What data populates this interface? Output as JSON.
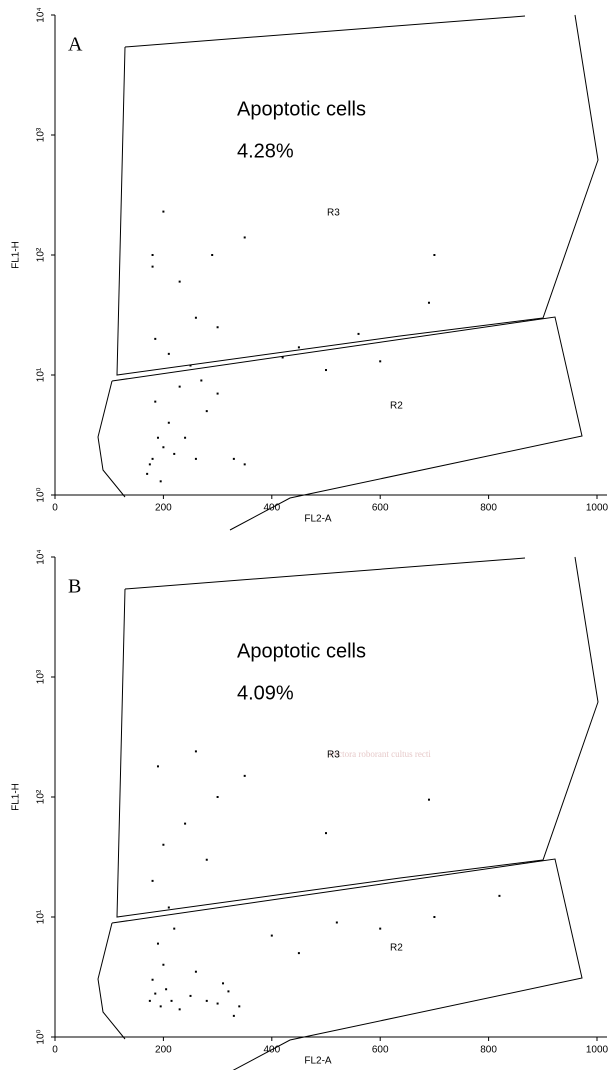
{
  "chart_data": [
    {
      "type": "scatter",
      "panel_label": "A",
      "xlabel": "FL2-A",
      "ylabel": "FL1-H",
      "yscale": "log",
      "xlim": [
        0,
        1000
      ],
      "xticks": [
        0,
        200,
        400,
        600,
        800,
        1000
      ],
      "ylim": [
        1,
        10000
      ],
      "yticks": [
        {
          "value": 1,
          "label": "10⁰"
        },
        {
          "value": 10,
          "label": "10¹"
        },
        {
          "value": 100,
          "label": "10²"
        },
        {
          "value": 1000,
          "label": "10³"
        },
        {
          "value": 10000,
          "label": "10⁴"
        }
      ],
      "annotations": [
        "Apoptotic cells",
        "4.28%"
      ],
      "region_labels": [
        "R3",
        "R2"
      ],
      "color": "#000000",
      "x": [
        180,
        190,
        200,
        210,
        175,
        185,
        220,
        240,
        260,
        280,
        300,
        330,
        350,
        170,
        195,
        230,
        270,
        250,
        210,
        185,
        300,
        420,
        500,
        600,
        690,
        180,
        200,
        230,
        260,
        180,
        290,
        350,
        450,
        560,
        700
      ],
      "values": [
        2,
        3,
        2.5,
        4,
        1.8,
        6,
        2.2,
        3,
        2,
        5,
        7,
        2,
        1.8,
        1.5,
        1.3,
        8,
        9,
        12,
        15,
        20,
        25,
        14,
        11,
        13,
        40,
        80,
        230,
        60,
        30,
        100,
        100,
        140,
        17,
        22,
        100
      ]
    },
    {
      "type": "scatter",
      "panel_label": "B",
      "xlabel": "FL2-A",
      "ylabel": "FL1-H",
      "yscale": "log",
      "xlim": [
        0,
        1000
      ],
      "xticks": [
        0,
        200,
        400,
        600,
        800,
        1000
      ],
      "ylim": [
        1,
        10000
      ],
      "yticks": [
        {
          "value": 1,
          "label": "10⁰"
        },
        {
          "value": 10,
          "label": "10¹"
        },
        {
          "value": 100,
          "label": "10²"
        },
        {
          "value": 1000,
          "label": "10³"
        },
        {
          "value": 10000,
          "label": "10⁴"
        }
      ],
      "annotations": [
        "Apoptotic cells",
        "4.09%"
      ],
      "region_labels": [
        "R3",
        "R2"
      ],
      "color": "#000000",
      "x": [
        175,
        185,
        195,
        205,
        215,
        230,
        250,
        280,
        300,
        320,
        340,
        180,
        200,
        260,
        310,
        330,
        190,
        220,
        400,
        450,
        520,
        600,
        700,
        820,
        180,
        200,
        240,
        280,
        300,
        350,
        190,
        260,
        500,
        690,
        210
      ],
      "values": [
        2,
        2.3,
        1.8,
        2.5,
        2,
        1.7,
        2.2,
        2,
        1.9,
        2.4,
        1.8,
        3,
        4,
        3.5,
        2.8,
        1.5,
        6,
        8,
        7,
        5,
        9,
        8,
        10,
        15,
        20,
        40,
        60,
        30,
        100,
        150,
        180,
        240,
        50,
        95,
        12
      ]
    }
  ],
  "watermark": "Pectora roborant cultus recti"
}
